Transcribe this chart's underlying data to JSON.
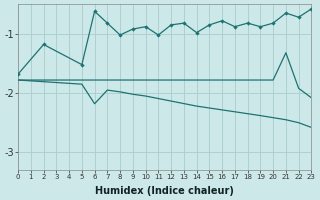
{
  "xlabel": "Humidex (Indice chaleur)",
  "bg_color": "#cde8e8",
  "grid_color": "#aacccc",
  "line_color": "#1e7272",
  "xlim": [
    0,
    23
  ],
  "ylim": [
    -3.3,
    -0.5
  ],
  "yticks": [
    -3,
    -2,
    -1
  ],
  "xticks": [
    0,
    1,
    2,
    3,
    4,
    5,
    6,
    7,
    8,
    9,
    10,
    11,
    12,
    13,
    14,
    15,
    16,
    17,
    18,
    19,
    20,
    21,
    22,
    23
  ],
  "line1_x": [
    0,
    2,
    5,
    6,
    7,
    8,
    9,
    10,
    11,
    12,
    13,
    14,
    15,
    16,
    17,
    18,
    19,
    20,
    21,
    22,
    23
  ],
  "line1_y": [
    -1.68,
    -1.18,
    -1.52,
    -0.62,
    -0.82,
    -1.02,
    -0.92,
    -0.88,
    -1.02,
    -0.85,
    -0.82,
    -0.98,
    -0.85,
    -0.78,
    -0.88,
    -0.82,
    -0.88,
    -0.82,
    -0.65,
    -0.72,
    -0.58
  ],
  "line2_x": [
    0,
    2,
    5,
    6,
    7,
    8,
    9,
    10,
    11,
    12,
    13,
    14,
    15,
    16,
    17,
    18,
    19,
    20,
    21,
    22,
    23
  ],
  "line2_y": [
    -1.78,
    -1.78,
    -1.78,
    -1.78,
    -1.78,
    -1.78,
    -1.78,
    -1.78,
    -1.78,
    -1.78,
    -1.78,
    -1.78,
    -1.78,
    -1.78,
    -1.78,
    -1.78,
    -1.78,
    -1.78,
    -1.32,
    -1.92,
    -2.08
  ],
  "line3_x": [
    0,
    5,
    6,
    7,
    8,
    9,
    10,
    14,
    19,
    21,
    22,
    23
  ],
  "line3_y": [
    -1.78,
    -1.85,
    -2.18,
    -1.95,
    -1.98,
    -2.02,
    -2.05,
    -2.22,
    -2.38,
    -2.45,
    -2.5,
    -2.58
  ]
}
